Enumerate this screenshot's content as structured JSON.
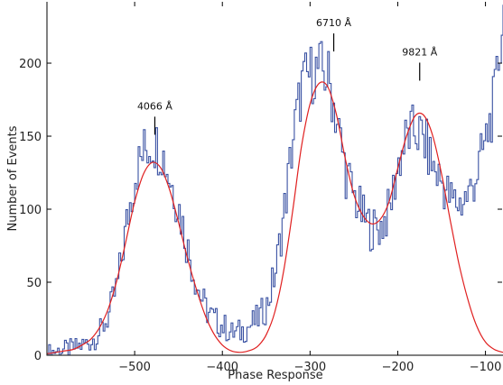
{
  "chart_data": {
    "type": "line",
    "title": "",
    "xlabel": "Phase Response",
    "ylabel": "Number of Events",
    "xlim": [
      -600,
      -80
    ],
    "ylim": [
      0,
      242
    ],
    "grid": false,
    "legend": "none",
    "xticks": [
      {
        "value": -500,
        "label": "−500"
      },
      {
        "value": -400,
        "label": "−400"
      },
      {
        "value": -300,
        "label": "−300"
      },
      {
        "value": -200,
        "label": "−200"
      },
      {
        "value": -100,
        "label": "−100"
      }
    ],
    "yticks": [
      {
        "value": 0,
        "label": "0"
      },
      {
        "value": 50,
        "label": "50"
      },
      {
        "value": 100,
        "label": "100"
      },
      {
        "value": 150,
        "label": "150"
      },
      {
        "value": 200,
        "label": "200"
      }
    ],
    "series": [
      {
        "color": "#3a52a3",
        "style": "histogram-step",
        "x": [
          -600,
          -590,
          -580,
          -570,
          -560,
          -550,
          -540,
          -530,
          -520,
          -510,
          -500,
          -490,
          -480,
          -470,
          -460,
          -450,
          -440,
          -430,
          -420,
          -410,
          -400,
          -390,
          -380,
          -370,
          -360,
          -350,
          -340,
          -330,
          -320,
          -310,
          -300,
          -290,
          -280,
          -270,
          -260,
          -250,
          -240,
          -230,
          -220,
          -210,
          -200,
          -190,
          -180,
          -170,
          -160,
          -150,
          -140,
          -130,
          -120,
          -110,
          -100,
          -90,
          -80
        ],
        "y": [
          2,
          3,
          4,
          5,
          7,
          10,
          16,
          28,
          50,
          90,
          125,
          140,
          146,
          140,
          120,
          100,
          72,
          48,
          32,
          24,
          20,
          15,
          16,
          20,
          25,
          34,
          58,
          100,
          150,
          185,
          193,
          196,
          190,
          160,
          125,
          108,
          94,
          86,
          88,
          100,
          132,
          150,
          154,
          146,
          128,
          118,
          106,
          104,
          110,
          126,
          148,
          176,
          240
        ]
      },
      {
        "color": "#e02020",
        "style": "smooth",
        "x": [
          -600,
          -590,
          -580,
          -570,
          -560,
          -550,
          -540,
          -530,
          -520,
          -510,
          -500,
          -490,
          -480,
          -470,
          -460,
          -450,
          -440,
          -430,
          -420,
          -410,
          -400,
          -390,
          -380,
          -370,
          -360,
          -350,
          -340,
          -330,
          -320,
          -310,
          -300,
          -290,
          -280,
          -270,
          -260,
          -250,
          -240,
          -230,
          -220,
          -210,
          -200,
          -190,
          -180,
          -170,
          -160,
          -150,
          -140,
          -130,
          -120,
          -110,
          -100,
          -90,
          -80
        ],
        "y": [
          1,
          2,
          3,
          4,
          7,
          11,
          19,
          32,
          52,
          78,
          105,
          124,
          132,
          128,
          113,
          91,
          67,
          46,
          28,
          15,
          7,
          3,
          2,
          3,
          6,
          14,
          30,
          58,
          98,
          142,
          172,
          186,
          184,
          165,
          135,
          110,
          96,
          90,
          93,
          105,
          128,
          150,
          164,
          164,
          150,
          124,
          92,
          62,
          38,
          20,
          9,
          4,
          2
        ]
      }
    ],
    "annotations": [
      {
        "label": "4066 Å",
        "x": -477,
        "y": 151
      },
      {
        "label": "6710 Å",
        "x": -273,
        "y": 208
      },
      {
        "label": "9821 Å",
        "x": -175,
        "y": 188
      }
    ]
  }
}
